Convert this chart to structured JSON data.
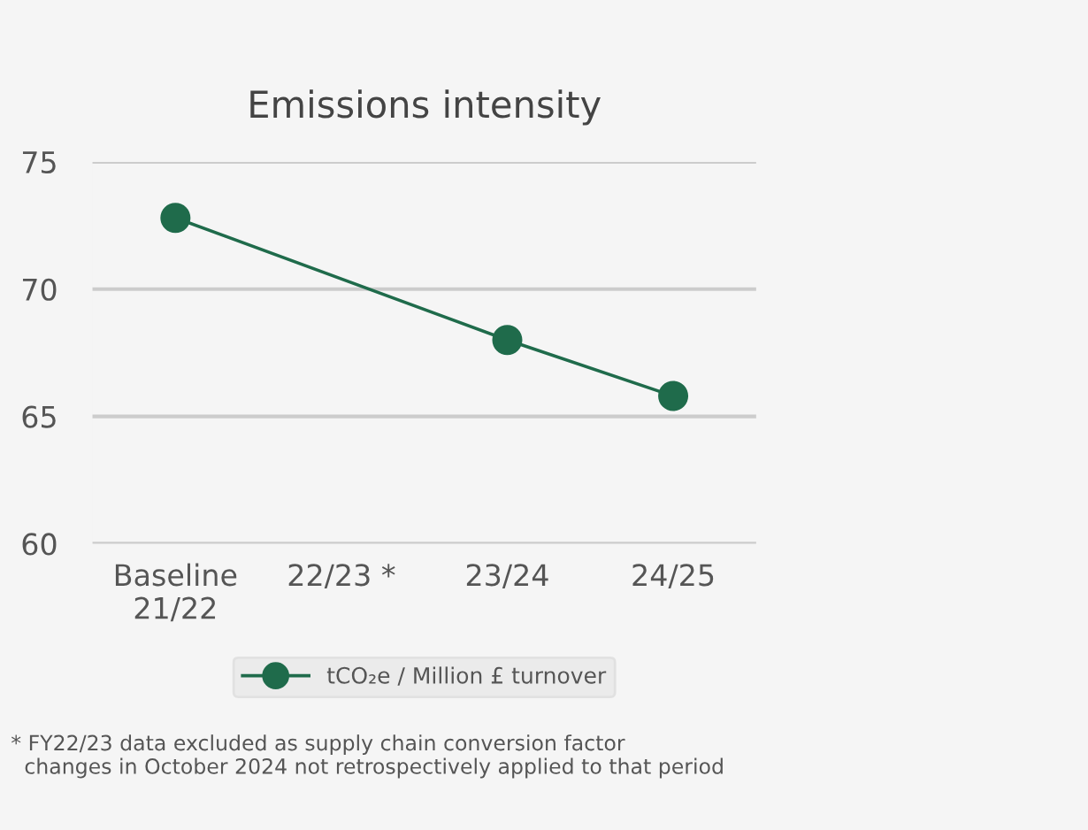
{
  "chart_data": {
    "type": "line",
    "title": "Emissions intensity",
    "categories": [
      "Baseline\n21/22",
      "22/23 *",
      "23/24",
      "24/25"
    ],
    "series": [
      {
        "name": "tCO₂e / Million £ turnover",
        "color": "#1f6b4b",
        "values": [
          72.8,
          null,
          68.0,
          65.8
        ]
      }
    ],
    "ylim": [
      60,
      75
    ],
    "yticks": [
      60,
      65,
      70,
      75
    ],
    "grid": "y",
    "legend": "bottom",
    "marker": "circle",
    "line_style": "solid",
    "annotations": [
      "* FY22/23 data excluded as supply chain conversion factor\n  changes in October 2024 not retrospectively applied to that period"
    ]
  }
}
